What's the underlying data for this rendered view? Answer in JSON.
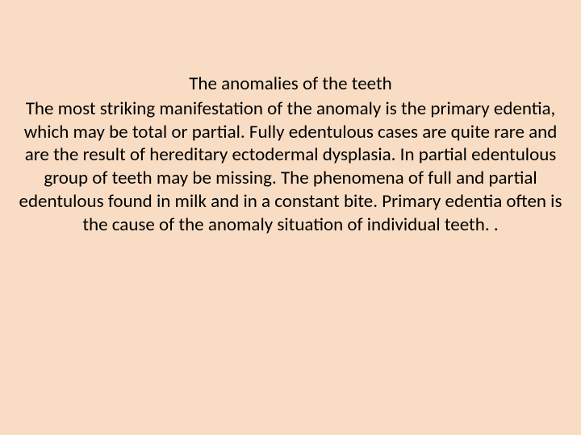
{
  "slide": {
    "background_color": "#f8ddc4",
    "page_background": "#000000",
    "title": "The anomalies of the teeth",
    "body": "The most striking manifestation of the anomaly is the primary edentia, which may be total or partial. Fully edentulous cases are quite rare and are the result of hereditary ectodermal dysplasia. In partial edentulous group of teeth may be missing. The phenomena of full and partial edentulous found in milk and in a constant bite. Primary edentia often is the cause of the anomaly situation of individual teeth. .",
    "font_family": "Calibri, Arial, sans-serif",
    "title_fontsize": 23,
    "body_fontsize": 23,
    "text_color": "#000000",
    "text_align": "center"
  }
}
